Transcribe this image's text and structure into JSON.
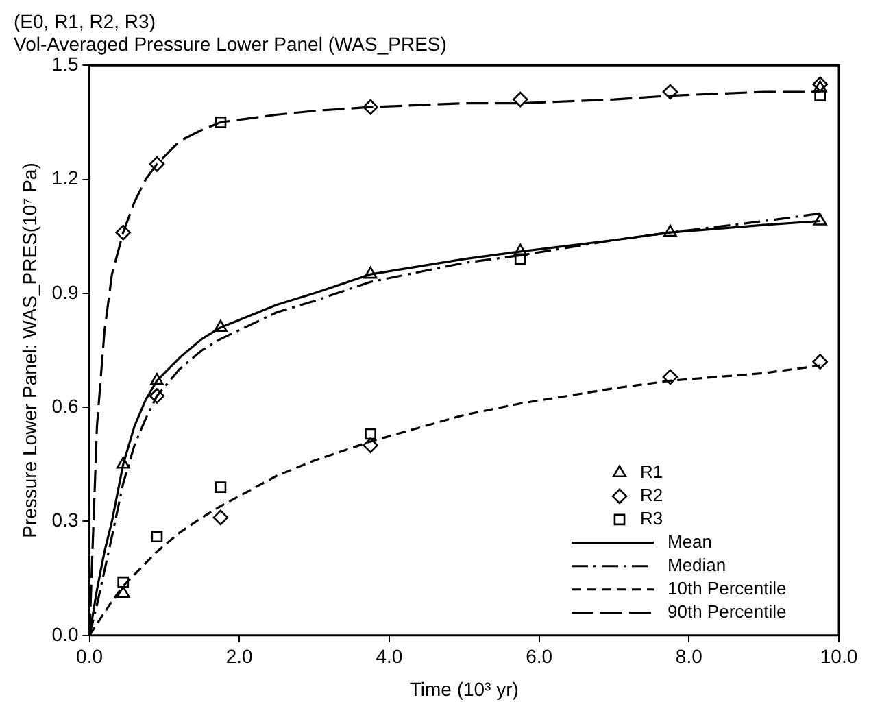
{
  "chart_data": {
    "type": "line",
    "title": "(E0, R1, R2, R3)",
    "subtitle": "Vol-Averaged Pressure Lower Panel (WAS_PRES)",
    "xlabel": "Time (10³ yr)",
    "ylabel": "Pressure Lower Panel: WAS_PRES(10⁷ Pa)",
    "xlim": [
      0,
      10
    ],
    "xticks": [
      {
        "value": 0,
        "label": "0.0"
      },
      {
        "value": 2,
        "label": "2.0"
      },
      {
        "value": 4,
        "label": "4.0"
      },
      {
        "value": 6,
        "label": "6.0"
      },
      {
        "value": 8,
        "label": "8.0"
      },
      {
        "value": 10,
        "label": "10.0"
      }
    ],
    "ylim": [
      0,
      1.5
    ],
    "yticks": [
      {
        "value": 0,
        "label": "0.0"
      },
      {
        "value": 0.3,
        "label": "0.3"
      },
      {
        "value": 0.6,
        "label": "0.6"
      },
      {
        "value": 0.9,
        "label": "0.9"
      },
      {
        "value": 1.2,
        "label": "1.2"
      },
      {
        "value": 1.5,
        "label": "1.5"
      }
    ],
    "grid": false,
    "legend": "bottom right",
    "series": [
      {
        "name": "R1",
        "type": "scatter",
        "marker": "triangle",
        "color": "#000000",
        "x": [
          0.45,
          0.9,
          1.75,
          3.75,
          5.75,
          7.75,
          9.75,
          9.75,
          0.45
        ],
        "values": [
          0.45,
          0.67,
          0.81,
          0.95,
          1.01,
          1.06,
          1.09,
          1.44,
          0.11
        ]
      },
      {
        "name": "R2",
        "type": "scatter",
        "marker": "diamond",
        "color": "#000000",
        "x": [
          0.45,
          0.9,
          3.75,
          5.75,
          7.75,
          9.75,
          1.75,
          3.75,
          7.75,
          9.75,
          0.9
        ],
        "values": [
          1.06,
          1.24,
          1.39,
          1.41,
          1.43,
          1.45,
          0.31,
          0.5,
          0.68,
          0.72,
          0.63
        ]
      },
      {
        "name": "R3",
        "type": "scatter",
        "marker": "square",
        "color": "#000000",
        "x": [
          1.75,
          9.75,
          0.45,
          0.9,
          1.75,
          3.75,
          5.75
        ],
        "values": [
          1.35,
          1.42,
          0.14,
          0.26,
          0.39,
          0.53,
          0.99
        ]
      },
      {
        "name": "Mean",
        "type": "line",
        "line_style": "solid",
        "color": "#000000",
        "x": [
          0,
          0.1,
          0.2,
          0.3,
          0.45,
          0.6,
          0.75,
          0.9,
          1.2,
          1.5,
          1.75,
          2.5,
          3,
          3.75,
          5,
          5.75,
          7,
          7.75,
          9,
          9.75
        ],
        "values": [
          0,
          0.12,
          0.22,
          0.3,
          0.45,
          0.55,
          0.62,
          0.67,
          0.73,
          0.78,
          0.81,
          0.87,
          0.9,
          0.95,
          0.99,
          1.01,
          1.04,
          1.06,
          1.08,
          1.09
        ]
      },
      {
        "name": "Median",
        "type": "line",
        "line_style": "dashdot",
        "color": "#000000",
        "x": [
          0,
          0.1,
          0.2,
          0.3,
          0.45,
          0.6,
          0.75,
          0.9,
          1.2,
          1.5,
          1.75,
          2.5,
          3,
          3.75,
          5,
          5.75,
          7,
          7.75,
          9,
          9.75
        ],
        "values": [
          0,
          0.08,
          0.17,
          0.26,
          0.4,
          0.5,
          0.57,
          0.63,
          0.7,
          0.75,
          0.78,
          0.85,
          0.88,
          0.93,
          0.98,
          1.0,
          1.04,
          1.06,
          1.09,
          1.11
        ]
      },
      {
        "name": "10th Percentile",
        "type": "line",
        "line_style": "dashed",
        "color": "#000000",
        "x": [
          0,
          0.1,
          0.2,
          0.3,
          0.45,
          0.6,
          0.75,
          0.9,
          1.2,
          1.5,
          1.75,
          2.5,
          3,
          3.75,
          5,
          5.75,
          7,
          7.75,
          9,
          9.75
        ],
        "values": [
          0,
          0.03,
          0.06,
          0.09,
          0.13,
          0.16,
          0.19,
          0.22,
          0.27,
          0.31,
          0.34,
          0.42,
          0.46,
          0.51,
          0.58,
          0.61,
          0.65,
          0.67,
          0.69,
          0.71
        ]
      },
      {
        "name": "90th Percentile",
        "type": "line",
        "line_style": "longdash",
        "color": "#000000",
        "x": [
          0,
          0.1,
          0.2,
          0.3,
          0.45,
          0.6,
          0.75,
          0.9,
          1.2,
          1.5,
          1.75,
          2.5,
          3,
          3.75,
          5,
          5.75,
          7,
          7.75,
          9,
          9.75
        ],
        "values": [
          0,
          0.55,
          0.8,
          0.95,
          1.06,
          1.14,
          1.2,
          1.24,
          1.3,
          1.33,
          1.35,
          1.37,
          1.38,
          1.39,
          1.4,
          1.4,
          1.41,
          1.42,
          1.43,
          1.43
        ]
      }
    ]
  }
}
